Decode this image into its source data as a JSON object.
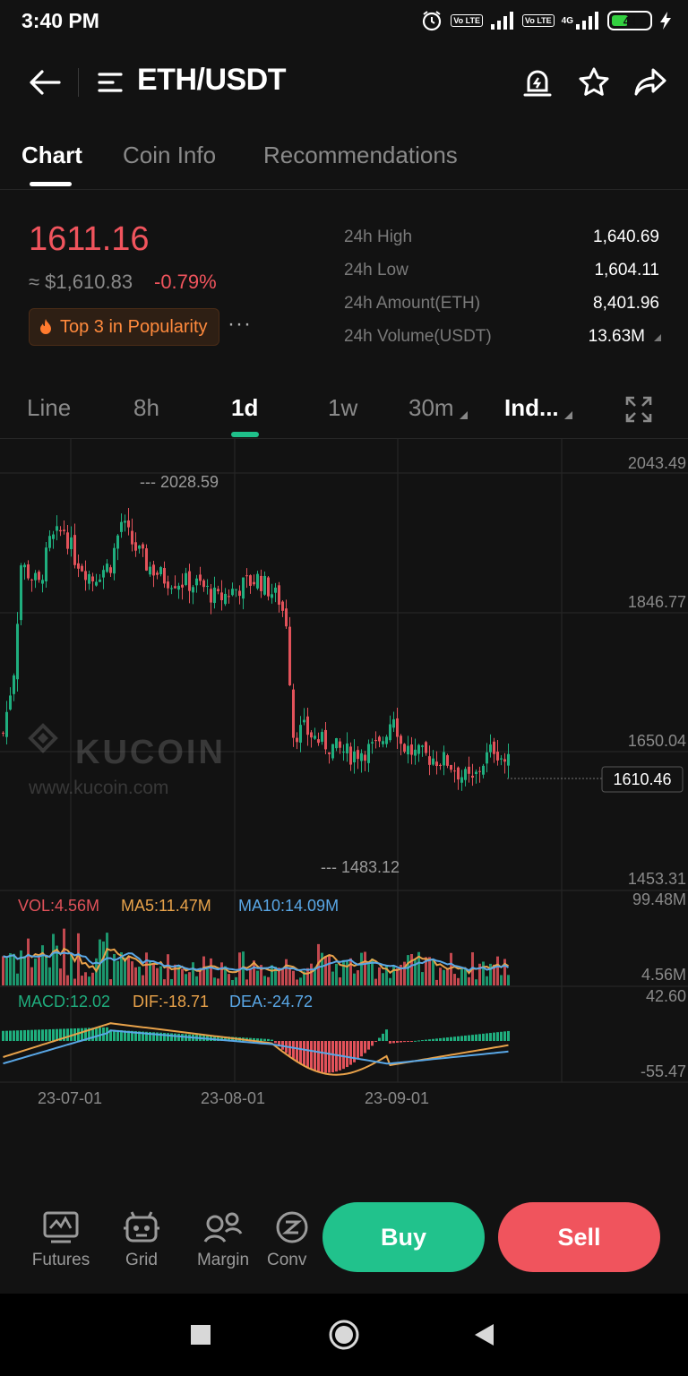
{
  "status_bar": {
    "time": "3:40 PM",
    "lte_label": "Vo LTE",
    "net_label": "4G",
    "battery": "44",
    "battery_level": 0.44
  },
  "header": {
    "title": "ETH/USDT"
  },
  "tabs": [
    {
      "label": "Chart",
      "active": true
    },
    {
      "label": "Coin Info"
    },
    {
      "label": "Recommendations"
    }
  ],
  "ticker": {
    "last_price": "1611.16",
    "usd_price": "≈ $1,610.83",
    "change": "-0.79%",
    "popularity_badge": "Top 3 in Popularity",
    "more": "···",
    "stats": [
      {
        "label": "24h High",
        "value": "1,640.69"
      },
      {
        "label": "24h Low",
        "value": "1,604.11"
      },
      {
        "label": "24h Amount(ETH)",
        "value": "8,401.96"
      },
      {
        "label": "24h Volume(USDT)",
        "value": "13.63M"
      }
    ]
  },
  "intervals": [
    {
      "label": "Line"
    },
    {
      "label": "8h"
    },
    {
      "label": "1d",
      "active": true
    },
    {
      "label": "1w"
    },
    {
      "label": "30m",
      "dropdown": true
    },
    {
      "label": "Ind...",
      "dropdown": true,
      "bold": true
    }
  ],
  "chart_data": {
    "type": "candlestick",
    "price_axis_labels": [
      "2043.49",
      "1846.77",
      "1650.04",
      "1453.31"
    ],
    "ylim": [
      1453.31,
      2043.49
    ],
    "current_price_tag": "1610.46",
    "max_marker": "2028.59",
    "min_marker": "1483.12",
    "x_tick_labels": [
      "23-07-01",
      "23-08-01",
      "23-09-01"
    ],
    "watermark_brand": "KUCOIN",
    "watermark_url": "www.kucoin.com",
    "up_color": "#1fae7e",
    "down_color": "#e2525a",
    "volume": {
      "vol_label": "VOL:4.56M",
      "ma5_label": "MA5:11.47M",
      "ma10_label": "MA10:14.09M",
      "axis_top": "99.48M",
      "axis_bottom": "4.56M"
    },
    "macd": {
      "macd_label": "MACD:12.02",
      "dif_label": "DIF:-18.71",
      "dea_label": "DEA:-24.72",
      "axis_top": "42.60",
      "axis_bottom": "-55.47"
    }
  },
  "bottom_tools": [
    {
      "label": "Futures",
      "icon": "futures-icon"
    },
    {
      "label": "Grid",
      "icon": "grid-bot-icon"
    },
    {
      "label": "Margin",
      "icon": "margin-icon"
    },
    {
      "label": "Conv",
      "icon": "convert-icon"
    }
  ],
  "actions": {
    "buy": "Buy",
    "sell": "Sell"
  }
}
